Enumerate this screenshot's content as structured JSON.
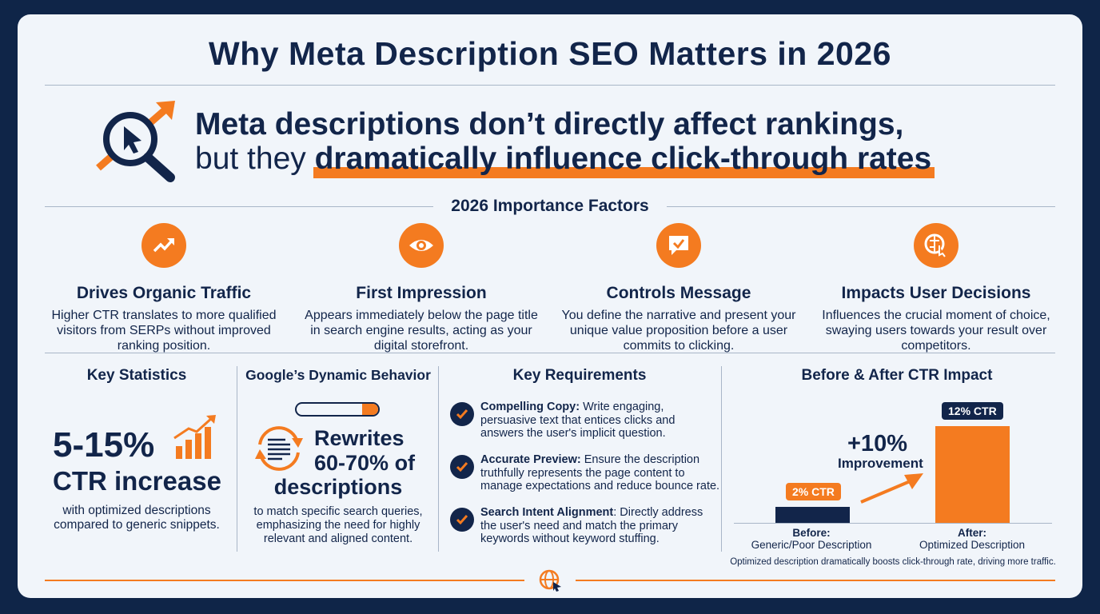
{
  "title": "Why Meta Description SEO Matters in 2026",
  "headline": {
    "line1": "Meta descriptions don’t directly affect rankings,",
    "line2_plain": "but they ",
    "line2_highlight": "dramatically influence click-through rates"
  },
  "factors_heading": "2026 Importance Factors",
  "factors": [
    {
      "icon": "trending-up-icon",
      "title": "Drives Organic Traffic",
      "desc": "Higher CTR translates to more qualified visitors from SERPs without improved ranking position."
    },
    {
      "icon": "eye-icon",
      "title": "First Impression",
      "desc": "Appears immediately below the page title in search engine results, acting as your digital storefront."
    },
    {
      "icon": "message-check-icon",
      "title": "Controls Message",
      "desc": "You define the narrative and present your unique value proposition before a user commits to clicking."
    },
    {
      "icon": "brain-click-icon",
      "title": "Impacts User Decisions",
      "desc": "Influences the crucial moment of choice, swaying users towards your result over competitors."
    }
  ],
  "stats": {
    "heading": "Key Statistics",
    "value": "5-15%",
    "label": "CTR increase",
    "desc": "with optimized descriptions compared to generic snippets."
  },
  "google": {
    "heading": "Google’s Dynamic Behavior",
    "line1": "Rewrites",
    "line2": "60-70% of",
    "line3": "descriptions",
    "desc": "to match specific search queries, emphasizing the need for highly relevant and aligned content."
  },
  "requirements": {
    "heading": "Key Requirements",
    "items": [
      {
        "label": "Compelling Copy:",
        "text": " Write engaging, persuasive text that entices clicks and answers the user's implicit question."
      },
      {
        "label": "Accurate Preview:",
        "text": " Ensure the description truthfully represents the page content to manage expectations and reduce bounce rate."
      },
      {
        "label": "Search Intent Alignment",
        "text": ": Directly address the user's need and match the primary keywords without keyword stuffing."
      }
    ]
  },
  "chart_data": {
    "type": "bar",
    "title": "Before & After CTR Impact",
    "categories": [
      "Before:",
      "After:"
    ],
    "category_sublabels": [
      "Generic/Poor Description",
      "Optimized Description"
    ],
    "values": [
      2,
      12
    ],
    "unit": "% CTR",
    "data_labels": [
      "2% CTR",
      "12% CTR"
    ],
    "colors": [
      "#12254a",
      "#f47b20"
    ],
    "annotation_value": "+10%",
    "annotation_label": "Improvement",
    "caption": "Optimized description dramatically boosts click-through rate, driving more traffic."
  },
  "colors": {
    "navy": "#12254a",
    "orange": "#f47b20",
    "background": "#0f2548",
    "card": "#f1f5fa"
  }
}
